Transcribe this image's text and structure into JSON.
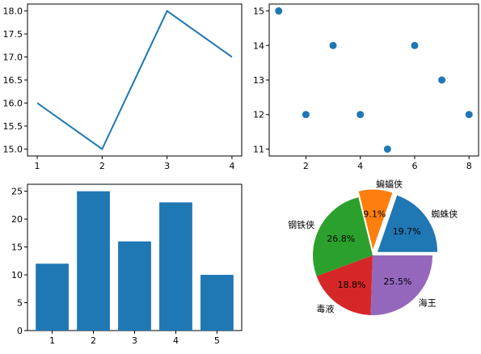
{
  "chart_data": [
    {
      "type": "line",
      "x": [
        1,
        2,
        3,
        4
      ],
      "y": [
        16,
        15,
        18,
        17
      ],
      "xlim": [
        0.85,
        4.15
      ],
      "ylim": [
        14.85,
        18.15
      ],
      "xticks": [
        1,
        2,
        3,
        4
      ],
      "xtick_labels": [
        "1",
        "2",
        "3",
        "4"
      ],
      "yticks": [
        15.0,
        15.5,
        16.0,
        16.5,
        17.0,
        17.5,
        18.0
      ],
      "ytick_labels": [
        "15.0",
        "15.5",
        "16.0",
        "16.5",
        "17.0",
        "17.5",
        "18.0"
      ],
      "color": "#1f77b4",
      "grid": false
    },
    {
      "type": "scatter",
      "x": [
        1,
        2,
        3,
        4,
        5,
        6,
        7,
        8
      ],
      "y": [
        15,
        12,
        14,
        12,
        11,
        14,
        13,
        12
      ],
      "xlim": [
        0.65,
        8.35
      ],
      "ylim": [
        10.8,
        15.2
      ],
      "xticks": [
        2,
        4,
        6,
        8
      ],
      "xtick_labels": [
        "2",
        "4",
        "6",
        "8"
      ],
      "yticks": [
        11,
        12,
        13,
        14,
        15
      ],
      "ytick_labels": [
        "11",
        "12",
        "13",
        "14",
        "15"
      ],
      "color": "#1f77b4",
      "grid": false
    },
    {
      "type": "bar",
      "categories": [
        "1",
        "2",
        "3",
        "4",
        "5"
      ],
      "values": [
        12,
        25,
        16,
        23,
        10
      ],
      "ylim": [
        0,
        26.25
      ],
      "yticks": [
        0,
        5,
        10,
        15,
        20,
        25
      ],
      "ytick_labels": [
        "0",
        "5",
        "10",
        "15",
        "20",
        "25"
      ],
      "color": "#1f77b4",
      "grid": false
    },
    {
      "type": "pie",
      "labels": [
        "蜘蛛侠",
        "蝙蝠侠",
        "钢铁侠",
        "毒液",
        "海王"
      ],
      "values": [
        19.7,
        9.1,
        26.8,
        18.8,
        25.5
      ],
      "value_labels": [
        "19.7%",
        "9.1%",
        "26.8%",
        "18.8%",
        "25.5%"
      ],
      "colors": [
        "#1f77b4",
        "#ff7f0e",
        "#2ca02c",
        "#d62728",
        "#9467bd"
      ],
      "explode": [
        0.1,
        0.1,
        0,
        0,
        0
      ],
      "startangle": 0
    }
  ]
}
